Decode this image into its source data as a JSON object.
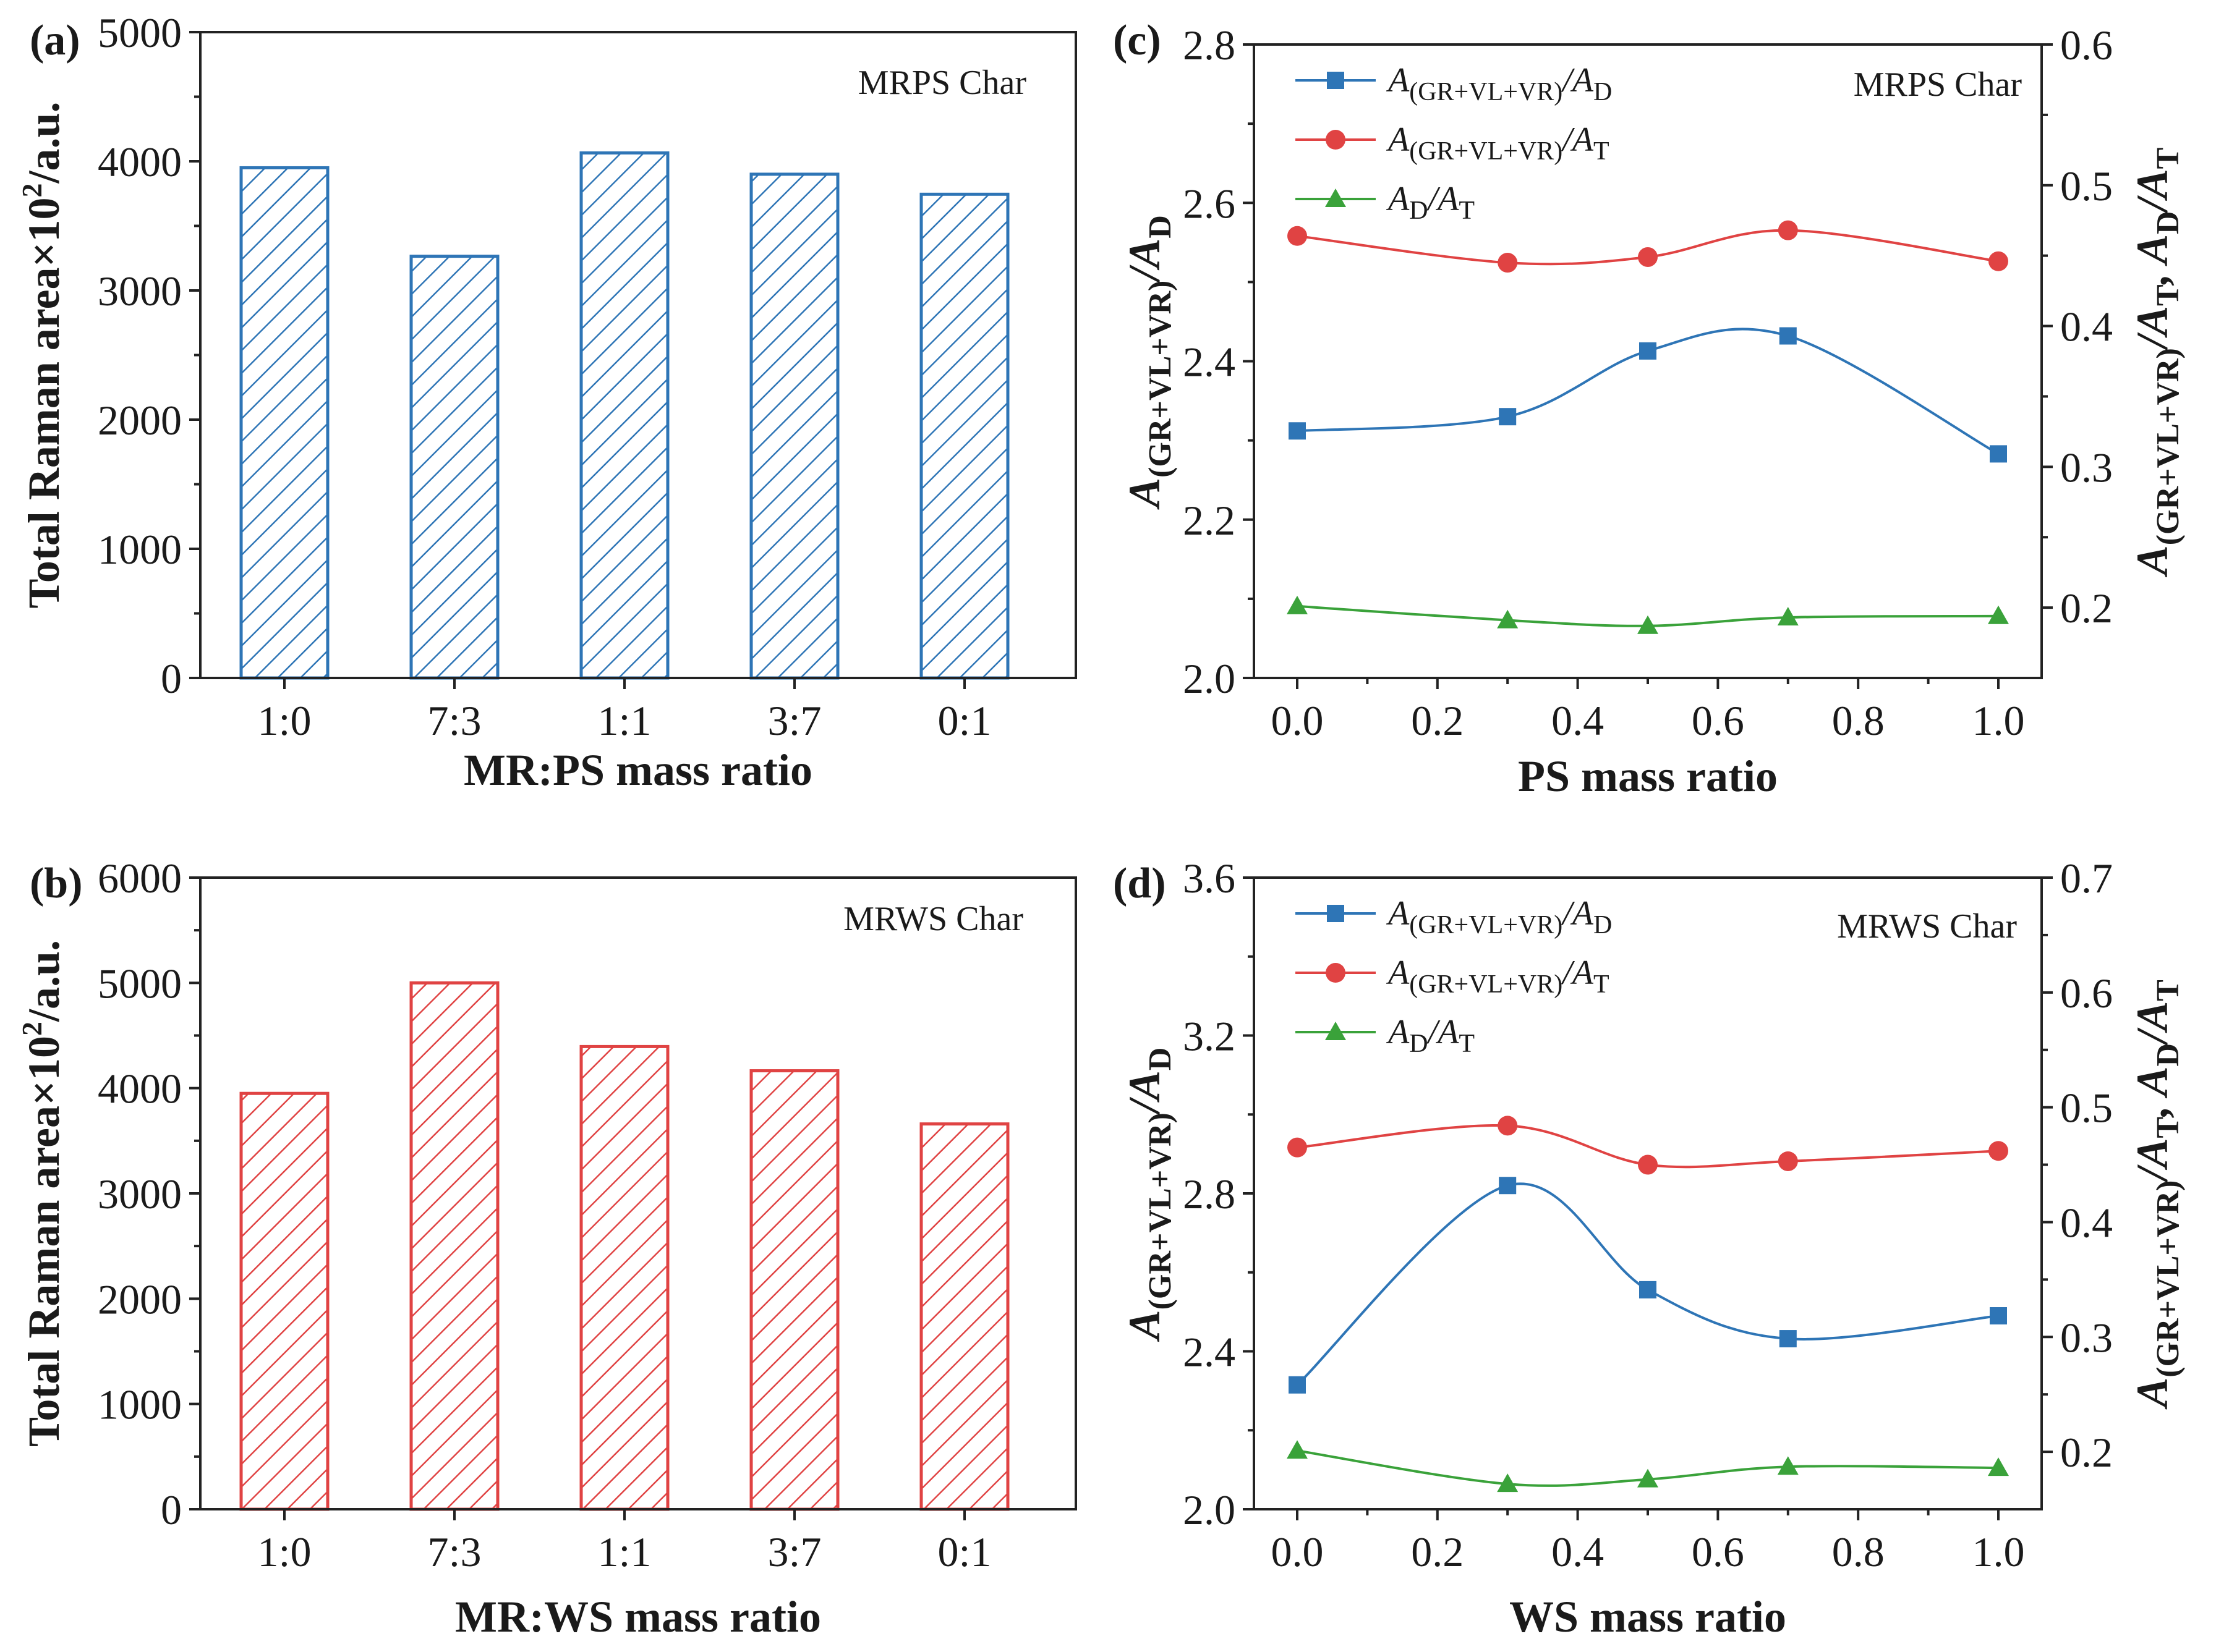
{
  "colors": {
    "blue": "#2e75b6",
    "red": "#e04343",
    "green": "#3aa23a",
    "axis": "#222222"
  },
  "chart_data": [
    {
      "id": "a",
      "type": "bar",
      "panel_label": "(a)",
      "annotation": "MRPS Char",
      "color": "#2e75b6",
      "hatch": "diagonal",
      "categories": [
        "1:0",
        "7:3",
        "1:1",
        "3:7",
        "0:1"
      ],
      "values": [
        3950,
        3265,
        4065,
        3900,
        3745
      ],
      "xlabel": "MR:PS mass ratio",
      "ylabel": {
        "main": "Total Raman area×10",
        "sup": "2",
        "tail": "/a.u."
      },
      "ylim": [
        0,
        5000
      ],
      "yticks": [
        0,
        1000,
        2000,
        3000,
        4000,
        5000
      ]
    },
    {
      "id": "b",
      "type": "bar",
      "panel_label": "(b)",
      "annotation": "MRWS Char",
      "color": "#e04343",
      "hatch": "diagonal",
      "categories": [
        "1:0",
        "7:3",
        "1:1",
        "3:7",
        "0:1"
      ],
      "values": [
        3950,
        5000,
        4395,
        4165,
        3660
      ],
      "xlabel": "MR:WS mass ratio",
      "ylabel": {
        "main": "Total Raman area×10",
        "sup": "2",
        "tail": "/a.u."
      },
      "ylim": [
        0,
        6000
      ],
      "yticks": [
        0,
        1000,
        2000,
        3000,
        4000,
        5000,
        6000
      ]
    },
    {
      "id": "c",
      "type": "line",
      "panel_label": "(c)",
      "annotation": "MRPS Char",
      "xlabel": "PS mass ratio",
      "xlim": [
        0,
        1.0
      ],
      "xticks": [
        0.0,
        0.2,
        0.4,
        0.6,
        0.8,
        1.0
      ],
      "x": [
        0.0,
        0.3,
        0.5,
        0.7,
        1.0
      ],
      "ylim_left": [
        2.0,
        2.8
      ],
      "yticks_left": [
        2.0,
        2.2,
        2.4,
        2.6,
        2.8
      ],
      "ylim_right": [
        0.15,
        0.6
      ],
      "yticks_right": [
        0.2,
        0.3,
        0.4,
        0.5,
        0.6
      ],
      "ylabel_left": {
        "a": "A",
        "a_sub": "(GR+VL+VR)",
        "b": "/A",
        "b_sub": "D"
      },
      "ylabel_right": {
        "t1": "A",
        "t1_sub": "(GR+VL+VR)",
        "t2": "/A",
        "t2_sub": "T",
        "t3": ", A",
        "t3_sub": "D",
        "t4": "/A",
        "t4_sub": "T"
      },
      "series": [
        {
          "name": "A(GR+VL+VR)/AD",
          "legend": {
            "a": "A",
            "sub1": "(GR+VL+VR)",
            "b": "/A",
            "sub2": "D"
          },
          "axis": "left",
          "marker": "square",
          "color": "#2e75b6",
          "values": [
            2.312,
            2.33,
            2.413,
            2.432,
            2.283
          ]
        },
        {
          "name": "A(GR+VL+VR)/AT",
          "legend": {
            "a": "A",
            "sub1": "(GR+VL+VR)",
            "b": "/A",
            "sub2": "T"
          },
          "axis": "right",
          "marker": "circle",
          "color": "#e04343",
          "values": [
            0.464,
            0.445,
            0.449,
            0.468,
            0.446
          ]
        },
        {
          "name": "AD/AT",
          "legend": {
            "a": "A",
            "sub1": "D",
            "b": "/A",
            "sub2": "T"
          },
          "axis": "right",
          "marker": "triangle",
          "color": "#3aa23a",
          "values": [
            0.201,
            0.191,
            0.187,
            0.193,
            0.194
          ]
        }
      ]
    },
    {
      "id": "d",
      "type": "line",
      "panel_label": "(d)",
      "annotation": "MRWS Char",
      "xlabel": "WS mass ratio",
      "xlim": [
        0,
        1.0
      ],
      "xticks": [
        0.0,
        0.2,
        0.4,
        0.6,
        0.8,
        1.0
      ],
      "x": [
        0.0,
        0.3,
        0.5,
        0.7,
        1.0
      ],
      "ylim_left": [
        2.0,
        3.6
      ],
      "yticks_left": [
        2.0,
        2.4,
        2.8,
        3.2,
        3.6
      ],
      "ylim_right": [
        0.15,
        0.7
      ],
      "yticks_right": [
        0.2,
        0.3,
        0.4,
        0.5,
        0.6,
        0.7
      ],
      "ylabel_left": {
        "a": "A",
        "a_sub": "(GR+VL+VR)",
        "b": "/A",
        "b_sub": "D"
      },
      "ylabel_right": {
        "t1": "A",
        "t1_sub": "(GR+VL+VR)",
        "t2": "/A",
        "t2_sub": "T",
        "t3": ", A",
        "t3_sub": "D",
        "t4": "/A",
        "t4_sub": "T"
      },
      "series": [
        {
          "name": "A(GR+VL+VR)/AD",
          "legend": {
            "a": "A",
            "sub1": "(GR+VL+VR)",
            "b": "/A",
            "sub2": "D"
          },
          "axis": "left",
          "marker": "square",
          "color": "#2e75b6",
          "values": [
            2.315,
            2.82,
            2.556,
            2.432,
            2.49
          ]
        },
        {
          "name": "A(GR+VL+VR)/AT",
          "legend": {
            "a": "A",
            "sub1": "(GR+VL+VR)",
            "b": "/A",
            "sub2": "T"
          },
          "axis": "right",
          "marker": "circle",
          "color": "#e04343",
          "values": [
            0.465,
            0.484,
            0.45,
            0.453,
            0.462
          ]
        },
        {
          "name": "AD/AT",
          "legend": {
            "a": "A",
            "sub1": "D",
            "b": "/A",
            "sub2": "T"
          },
          "axis": "right",
          "marker": "triangle",
          "color": "#3aa23a",
          "values": [
            0.201,
            0.172,
            0.176,
            0.187,
            0.186
          ]
        }
      ]
    }
  ]
}
